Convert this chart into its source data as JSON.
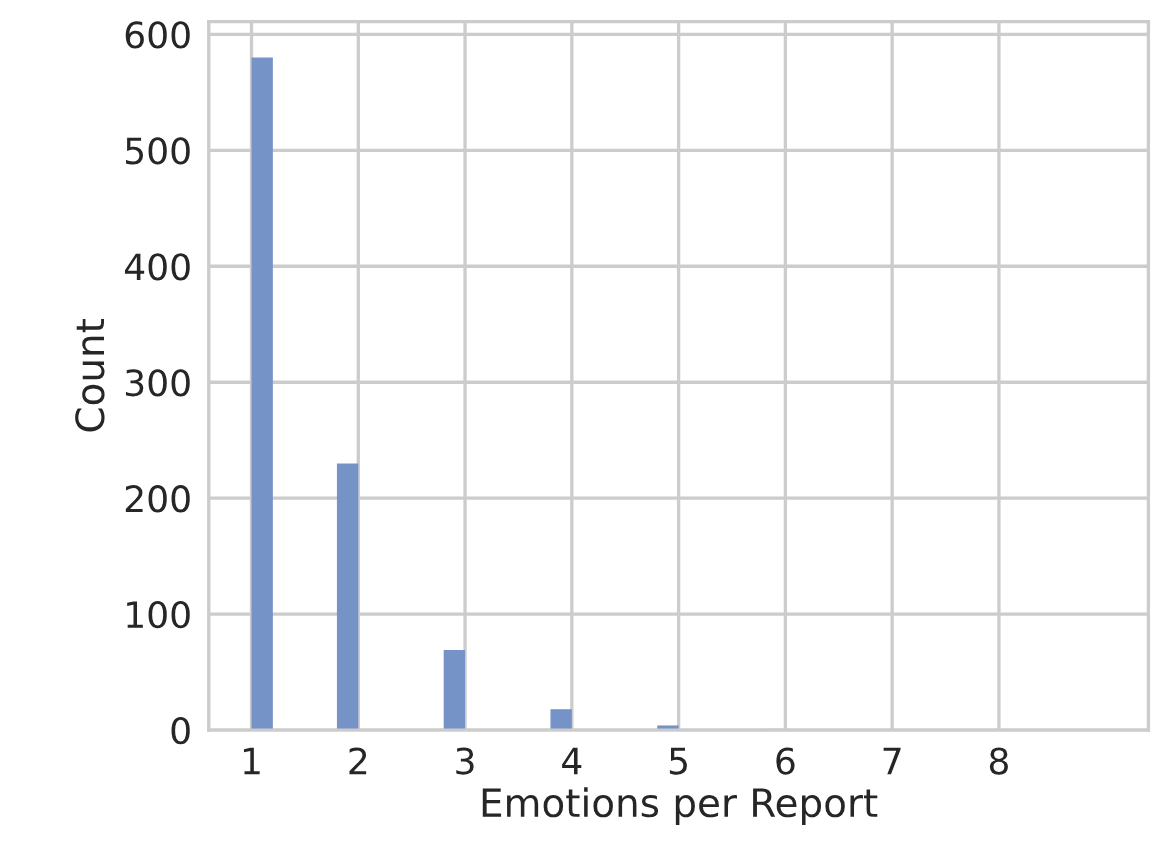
{
  "chart_data": {
    "type": "histogram",
    "xlabel": "Emotions per Report",
    "ylabel": "Count",
    "bins": [
      1.0,
      1.2,
      1.4,
      1.6,
      1.8,
      2.0,
      2.2,
      2.4,
      2.6,
      2.8,
      3.0,
      3.2,
      3.4,
      3.6,
      3.8,
      4.0,
      4.2,
      4.4,
      4.6,
      4.8,
      5.0,
      5.2,
      5.4,
      5.6,
      5.8,
      6.0,
      6.2,
      6.4,
      6.6,
      6.8,
      7.0,
      7.2,
      7.4,
      7.6,
      7.8,
      8.0,
      8.2,
      8.4,
      8.6,
      8.8,
      9.0
    ],
    "values": [
      580,
      0,
      0,
      0,
      230,
      0,
      0,
      0,
      0,
      69,
      0,
      0,
      0,
      0,
      18,
      0,
      0,
      0,
      0,
      4,
      0,
      0,
      0,
      0,
      1,
      0,
      0,
      0,
      0,
      0,
      0,
      0,
      0,
      0,
      0,
      0,
      0,
      0,
      0,
      1
    ],
    "color": "#7593c6",
    "xlim": [
      0.6,
      9.4
    ],
    "ylim": [
      0,
      611
    ],
    "xticks": [
      1,
      2,
      3,
      4,
      5,
      6,
      7,
      8
    ],
    "yticks": [
      0,
      100,
      200,
      300,
      400,
      500,
      600
    ],
    "grid": true
  }
}
